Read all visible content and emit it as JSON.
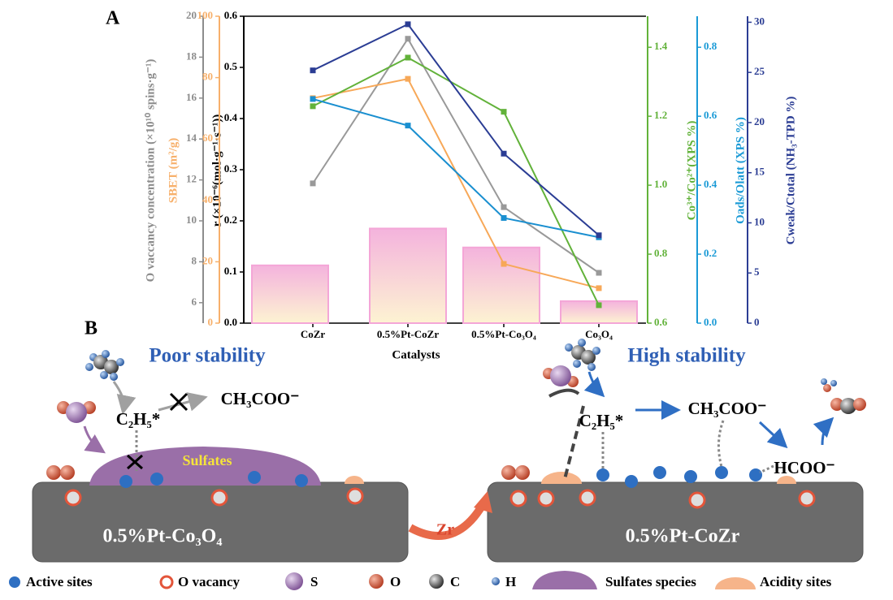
{
  "panel_labels": {
    "a": "A",
    "b": "B"
  },
  "chart_data": {
    "type": "combo",
    "xlabel": "Catalysts",
    "categories": [
      "CoZr",
      "0.5%Pt-CoZr",
      "0.5%Pt-Co₃O₄",
      "Co₃O₄"
    ],
    "axes": [
      {
        "label": "r (×10⁻⁶(mol·g⁻¹·s⁻¹))",
        "color": "#000000",
        "lim": [
          0,
          0.6
        ],
        "ticks": [
          {
            "value": 0,
            "label": "0.0"
          },
          0.1,
          0.2,
          0.3,
          0.4,
          0.5,
          0.6
        ]
      },
      {
        "label": "O vaccancy concentration (×10¹⁰ spins·g⁻¹)",
        "color": "#8c8c8c",
        "lim": [
          5,
          20
        ],
        "ticks": [
          6,
          8,
          10,
          12,
          14,
          16,
          18,
          20
        ]
      },
      {
        "label": "SBET (m²/g)",
        "color": "#f7b06b",
        "lim": [
          0,
          100
        ],
        "ticks": [
          0,
          20,
          40,
          60,
          80,
          100
        ]
      },
      {
        "label": "Co³⁺/Co²⁺(XPS %)",
        "color": "#62b23a",
        "lim": [
          0.6,
          1.49
        ],
        "ticks": [
          0.6,
          0.8,
          {
            "value": 1,
            "label": "1.0"
          },
          1.2,
          1.4
        ]
      },
      {
        "label": "Oads/Olatt (XPS %)",
        "color": "#1a9ad6",
        "lim": [
          0,
          0.89
        ],
        "ticks": [
          {
            "value": 0,
            "label": "0.0"
          },
          0.2,
          0.4,
          0.6,
          0.8
        ]
      },
      {
        "label": "Cweak/Ctotal (NH₃-TPD %)",
        "color": "#2b3d94",
        "lim": [
          0,
          30.6
        ],
        "ticks": [
          0,
          5,
          10,
          15,
          20,
          25,
          30
        ]
      }
    ],
    "series": [
      {
        "type": "bar",
        "axis": 0,
        "color": "#f4a6d7",
        "values": [
          0.113,
          0.185,
          0.148,
          0.043
        ]
      },
      {
        "type": "line",
        "axis": 1,
        "color": "#999999",
        "values": [
          11.83,
          18.9,
          10.67,
          7.46
        ]
      },
      {
        "type": "line",
        "axis": 2,
        "color": "#f7a858",
        "values": [
          73.3,
          79.6,
          19.3,
          11.4
        ]
      },
      {
        "type": "line",
        "axis": 3,
        "color": "#62b23a",
        "values": [
          1.229,
          1.37,
          1.213,
          0.652
        ]
      },
      {
        "type": "line",
        "axis": 4,
        "color": "#1a8fd0",
        "values": [
          0.65,
          0.573,
          0.305,
          0.249
        ]
      },
      {
        "type": "line",
        "axis": 5,
        "color": "#2b3d94",
        "values": [
          25.2,
          29.8,
          16.9,
          8.76
        ]
      }
    ]
  },
  "diagram": {
    "left_title": "Poor stability",
    "left_intermediate": "C₂H₅*",
    "left_product": "CH₃COO⁻",
    "sulfates": "Sulfates",
    "left_catalyst": "0.5%Pt-Co₃O₄",
    "dopant": "Zr",
    "right_title": "High stability",
    "right_intermediate": "C₂H₅*",
    "right_product": "CH₃COO⁻",
    "right_product2": "HCOO⁻",
    "right_catalyst": "0.5%Pt-CoZr",
    "legend": [
      "Active sites",
      "O vacancy",
      "S",
      "O",
      "C",
      "H",
      "Sulfates species",
      "Acidity sites"
    ]
  }
}
